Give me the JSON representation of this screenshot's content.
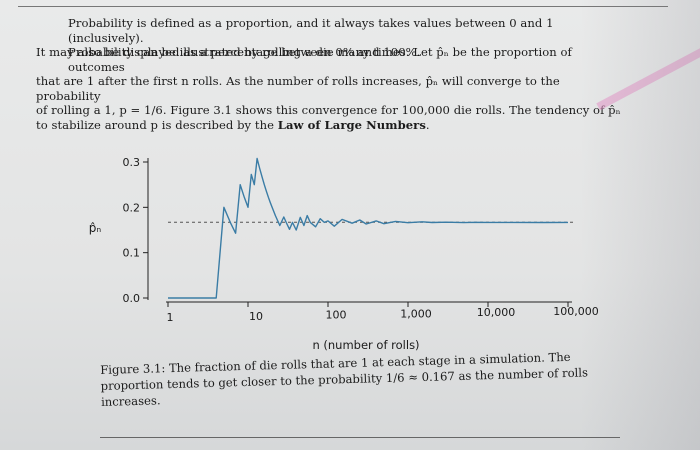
{
  "text": {
    "p1_line1": "Probability is defined as a proportion, and it always takes values between 0 and 1 (inclusively).",
    "p1_line2": "It may also be displayed as a percentage between 0% and 100%.",
    "p2_line1": "Probability can be illustrated by rolling a die many times. Let p̂ₙ be the proportion of outcomes",
    "p2_line2": "that are 1 after the first n rolls. As the number of rolls increases, p̂ₙ will converge to the probability",
    "p2_line3": "of rolling a 1, p = 1/6. Figure 3.1 shows this convergence for 100,000 die rolls. The tendency of p̂ₙ",
    "p2_line4_pre": "to stabilize around p is described by the ",
    "p2_line4_bold": "Law of Large Numbers",
    "p2_line4_post": ".",
    "caption_line1": "Figure 3.1: The fraction of die rolls that are 1 at each stage in a simulation. The",
    "caption_line2": "proportion tends to get closer to the probability 1/6 ≈ 0.167 as the number of rolls",
    "caption_line3": "increases."
  },
  "chart_data": {
    "type": "line",
    "xlabel": "n (number of rolls)",
    "ylabel": "p̂ₙ",
    "x_scale": "log",
    "xlim": [
      1,
      100000
    ],
    "ylim": [
      0,
      0.3
    ],
    "x_ticks": [
      {
        "value": 1,
        "label": "1"
      },
      {
        "value": 10,
        "label": "10"
      },
      {
        "value": 100,
        "label": "100"
      },
      {
        "value": 1000,
        "label": "1,000"
      },
      {
        "value": 10000,
        "label": "10,000"
      },
      {
        "value": 100000,
        "label": "100,000"
      }
    ],
    "y_ticks": [
      {
        "value": 0.0,
        "label": "0.0"
      },
      {
        "value": 0.1,
        "label": "0.1"
      },
      {
        "value": 0.2,
        "label": "0.2"
      },
      {
        "value": 0.3,
        "label": "0.3"
      }
    ],
    "reference_line": {
      "y": 0.167,
      "style": "dashed"
    },
    "series": [
      {
        "color": "#3a7ca5",
        "points": [
          [
            1,
            0
          ],
          [
            2,
            0
          ],
          [
            3,
            0
          ],
          [
            4,
            0
          ],
          [
            5,
            0.2
          ],
          [
            6,
            0.1667
          ],
          [
            7,
            0.1429
          ],
          [
            8,
            0.25
          ],
          [
            9,
            0.2222
          ],
          [
            10,
            0.2
          ],
          [
            11,
            0.2727
          ],
          [
            12,
            0.25
          ],
          [
            13,
            0.3077
          ],
          [
            14,
            0.2857
          ],
          [
            15,
            0.2667
          ],
          [
            16,
            0.25
          ],
          [
            17,
            0.2353
          ],
          [
            18,
            0.2222
          ],
          [
            19,
            0.2105
          ],
          [
            20,
            0.2
          ],
          [
            22,
            0.1818
          ],
          [
            25,
            0.16
          ],
          [
            28,
            0.1786
          ],
          [
            30,
            0.1667
          ],
          [
            33,
            0.1515
          ],
          [
            36,
            0.1667
          ],
          [
            40,
            0.15
          ],
          [
            45,
            0.1778
          ],
          [
            50,
            0.16
          ],
          [
            55,
            0.1818
          ],
          [
            60,
            0.1667
          ],
          [
            70,
            0.1571
          ],
          [
            80,
            0.175
          ],
          [
            90,
            0.1667
          ],
          [
            100,
            0.17
          ],
          [
            120,
            0.1583
          ],
          [
            150,
            0.1733
          ],
          [
            200,
            0.165
          ],
          [
            250,
            0.172
          ],
          [
            300,
            0.1633
          ],
          [
            400,
            0.17
          ],
          [
            500,
            0.164
          ],
          [
            700,
            0.169
          ],
          [
            1000,
            0.166
          ],
          [
            1500,
            0.168
          ],
          [
            2000,
            0.1665
          ],
          [
            3000,
            0.1672
          ],
          [
            5000,
            0.1664
          ],
          [
            7000,
            0.1669
          ],
          [
            10000,
            0.1667
          ],
          [
            20000,
            0.1668
          ],
          [
            50000,
            0.1666
          ],
          [
            100000,
            0.1667
          ]
        ]
      }
    ]
  }
}
